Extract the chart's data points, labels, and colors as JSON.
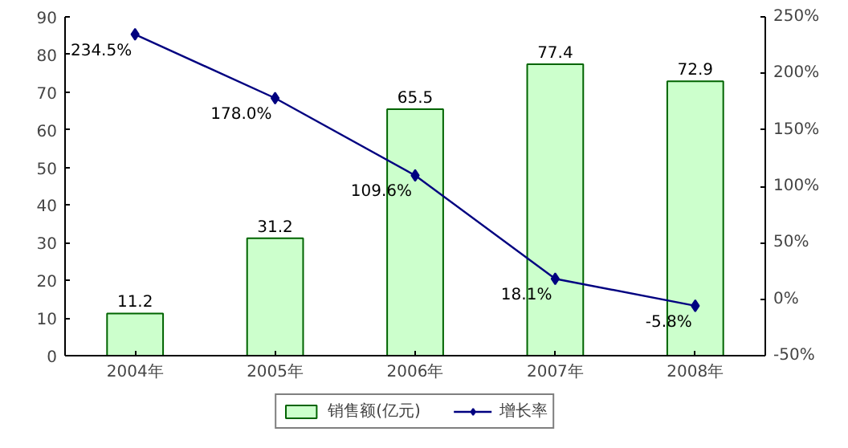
{
  "chart_data": {
    "type": "bar",
    "categories": [
      "2004年",
      "2005年",
      "2006年",
      "2007年",
      "2008年"
    ],
    "series": [
      {
        "name": "销售额(亿元)",
        "type": "bar",
        "color": "#ccffcc",
        "values": [
          11.2,
          31.2,
          65.5,
          77.4,
          72.9
        ],
        "value_labels": [
          "11.2",
          "31.2",
          "65.5",
          "77.4",
          "72.9"
        ]
      },
      {
        "name": "增长率",
        "type": "line",
        "axis": "y2",
        "color": "#000080",
        "marker": "diamond",
        "values": [
          234.5,
          178.0,
          109.6,
          18.1,
          -5.8
        ],
        "value_labels": [
          "234.5%",
          "178.0%",
          "109.6%",
          "18.1%",
          "-5.8%"
        ]
      }
    ],
    "ylim": [
      0,
      90
    ],
    "yticks": [
      0,
      10,
      20,
      30,
      40,
      50,
      60,
      70,
      80,
      90
    ],
    "y2lim": [
      -50,
      250
    ],
    "y2ticks": [
      {
        "value": -50,
        "label": "-50%"
      },
      {
        "value": 0,
        "label": "0%"
      },
      {
        "value": 50,
        "label": "50%"
      },
      {
        "value": 100,
        "label": "100%"
      },
      {
        "value": 150,
        "label": "150%"
      },
      {
        "value": 200,
        "label": "200%"
      },
      {
        "value": 250,
        "label": "250%"
      }
    ],
    "grid": false,
    "legend": "bottom"
  }
}
